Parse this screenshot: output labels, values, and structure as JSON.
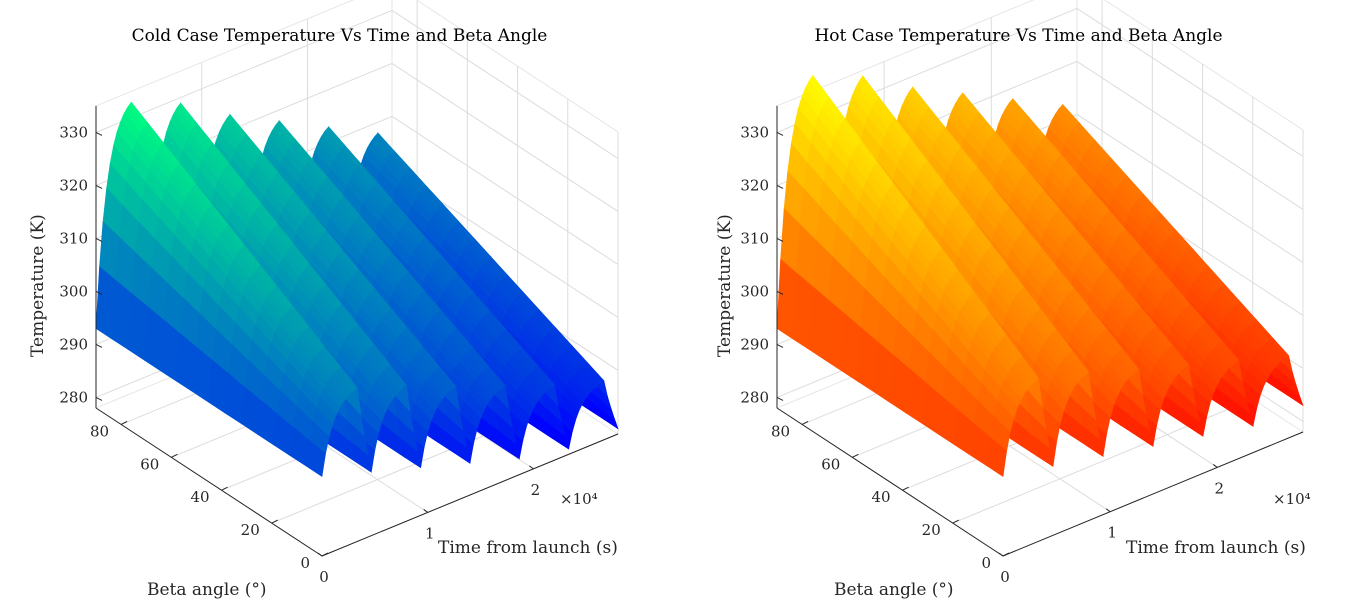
{
  "chart_data": [
    {
      "type": "surface",
      "title": "Cold Case Temperature Vs Time and Beta Angle",
      "xlabel": "Time from launch (s)",
      "ylabel": "Beta angle (°)",
      "zlabel": "Temperature (K)",
      "x_exponent_label": "×10⁴",
      "xlim": [
        0,
        28000
      ],
      "ylim": [
        0,
        90
      ],
      "zlim": [
        278,
        335
      ],
      "x_ticks": [
        "0",
        "1",
        "2"
      ],
      "y_ticks": [
        "0",
        "20",
        "40",
        "60",
        "80"
      ],
      "z_ticks": [
        "280",
        "290",
        "300",
        "310",
        "320",
        "330"
      ],
      "colormap": "winter",
      "color_low": "#0000ff",
      "color_high": "#00ff80",
      "orbits": 6,
      "start_temperature": 293,
      "peak_temperature_by_orbit": [
        333,
        329,
        323,
        318,
        313,
        308
      ],
      "min_temperature_by_orbit": [
        293,
        290,
        287,
        284,
        281,
        279
      ],
      "grid": true
    },
    {
      "type": "surface",
      "title": "Hot Case Temperature Vs Time and Beta Angle",
      "xlabel": "Time from launch (s)",
      "ylabel": "Beta angle (°)",
      "zlabel": "Temperature (K)",
      "x_exponent_label": "×10⁴",
      "xlim": [
        0,
        28000
      ],
      "ylim": [
        0,
        90
      ],
      "zlim": [
        278,
        335
      ],
      "x_ticks": [
        "0",
        "1",
        "2"
      ],
      "y_ticks": [
        "0",
        "20",
        "40",
        "60",
        "80"
      ],
      "z_ticks": [
        "280",
        "290",
        "300",
        "310",
        "320",
        "330"
      ],
      "colormap": "autumn",
      "color_low": "#ff0000",
      "color_high": "#ffff00",
      "orbits": 6,
      "start_temperature": 293,
      "peak_temperature_by_orbit": [
        338,
        334,
        328,
        323,
        318,
        313
      ],
      "min_temperature_by_orbit": [
        293,
        291,
        289,
        287,
        285,
        283
      ],
      "grid": true
    }
  ]
}
